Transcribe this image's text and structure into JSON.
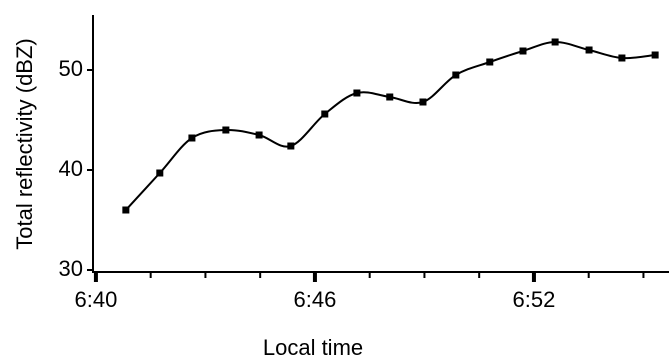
{
  "chart_data": {
    "type": "line",
    "x_label": "Local time",
    "y_label": "Total reflectivity (dBZ)",
    "x": [
      400.82,
      401.75,
      402.63,
      403.56,
      404.47,
      405.34,
      406.27,
      407.15,
      408.05,
      408.96,
      409.86,
      410.79,
      411.7,
      412.58,
      413.51,
      414.41,
      415.32
    ],
    "series": [
      {
        "color": "#000000",
        "values": [
          36.0,
          39.7,
          43.2,
          44.0,
          43.5,
          42.4,
          45.6,
          47.7,
          47.3,
          46.8,
          49.5,
          50.8,
          51.9,
          52.8,
          52.0,
          51.2,
          51.5
        ]
      }
    ],
    "smooth": true,
    "xlim": [
      399.92,
      415.7
    ],
    "xticks": [
      {
        "value": 400,
        "label": "6:40"
      },
      {
        "value": 406,
        "label": "6:46"
      },
      {
        "value": 412,
        "label": "6:52"
      }
    ],
    "xminor_ticks": [
      401.5,
      403,
      404.5,
      407.5,
      409,
      410.5,
      413.5,
      415
    ],
    "ylim": [
      29.8,
      55.5
    ],
    "yticks": [
      30,
      40,
      50
    ],
    "grid": false
  }
}
